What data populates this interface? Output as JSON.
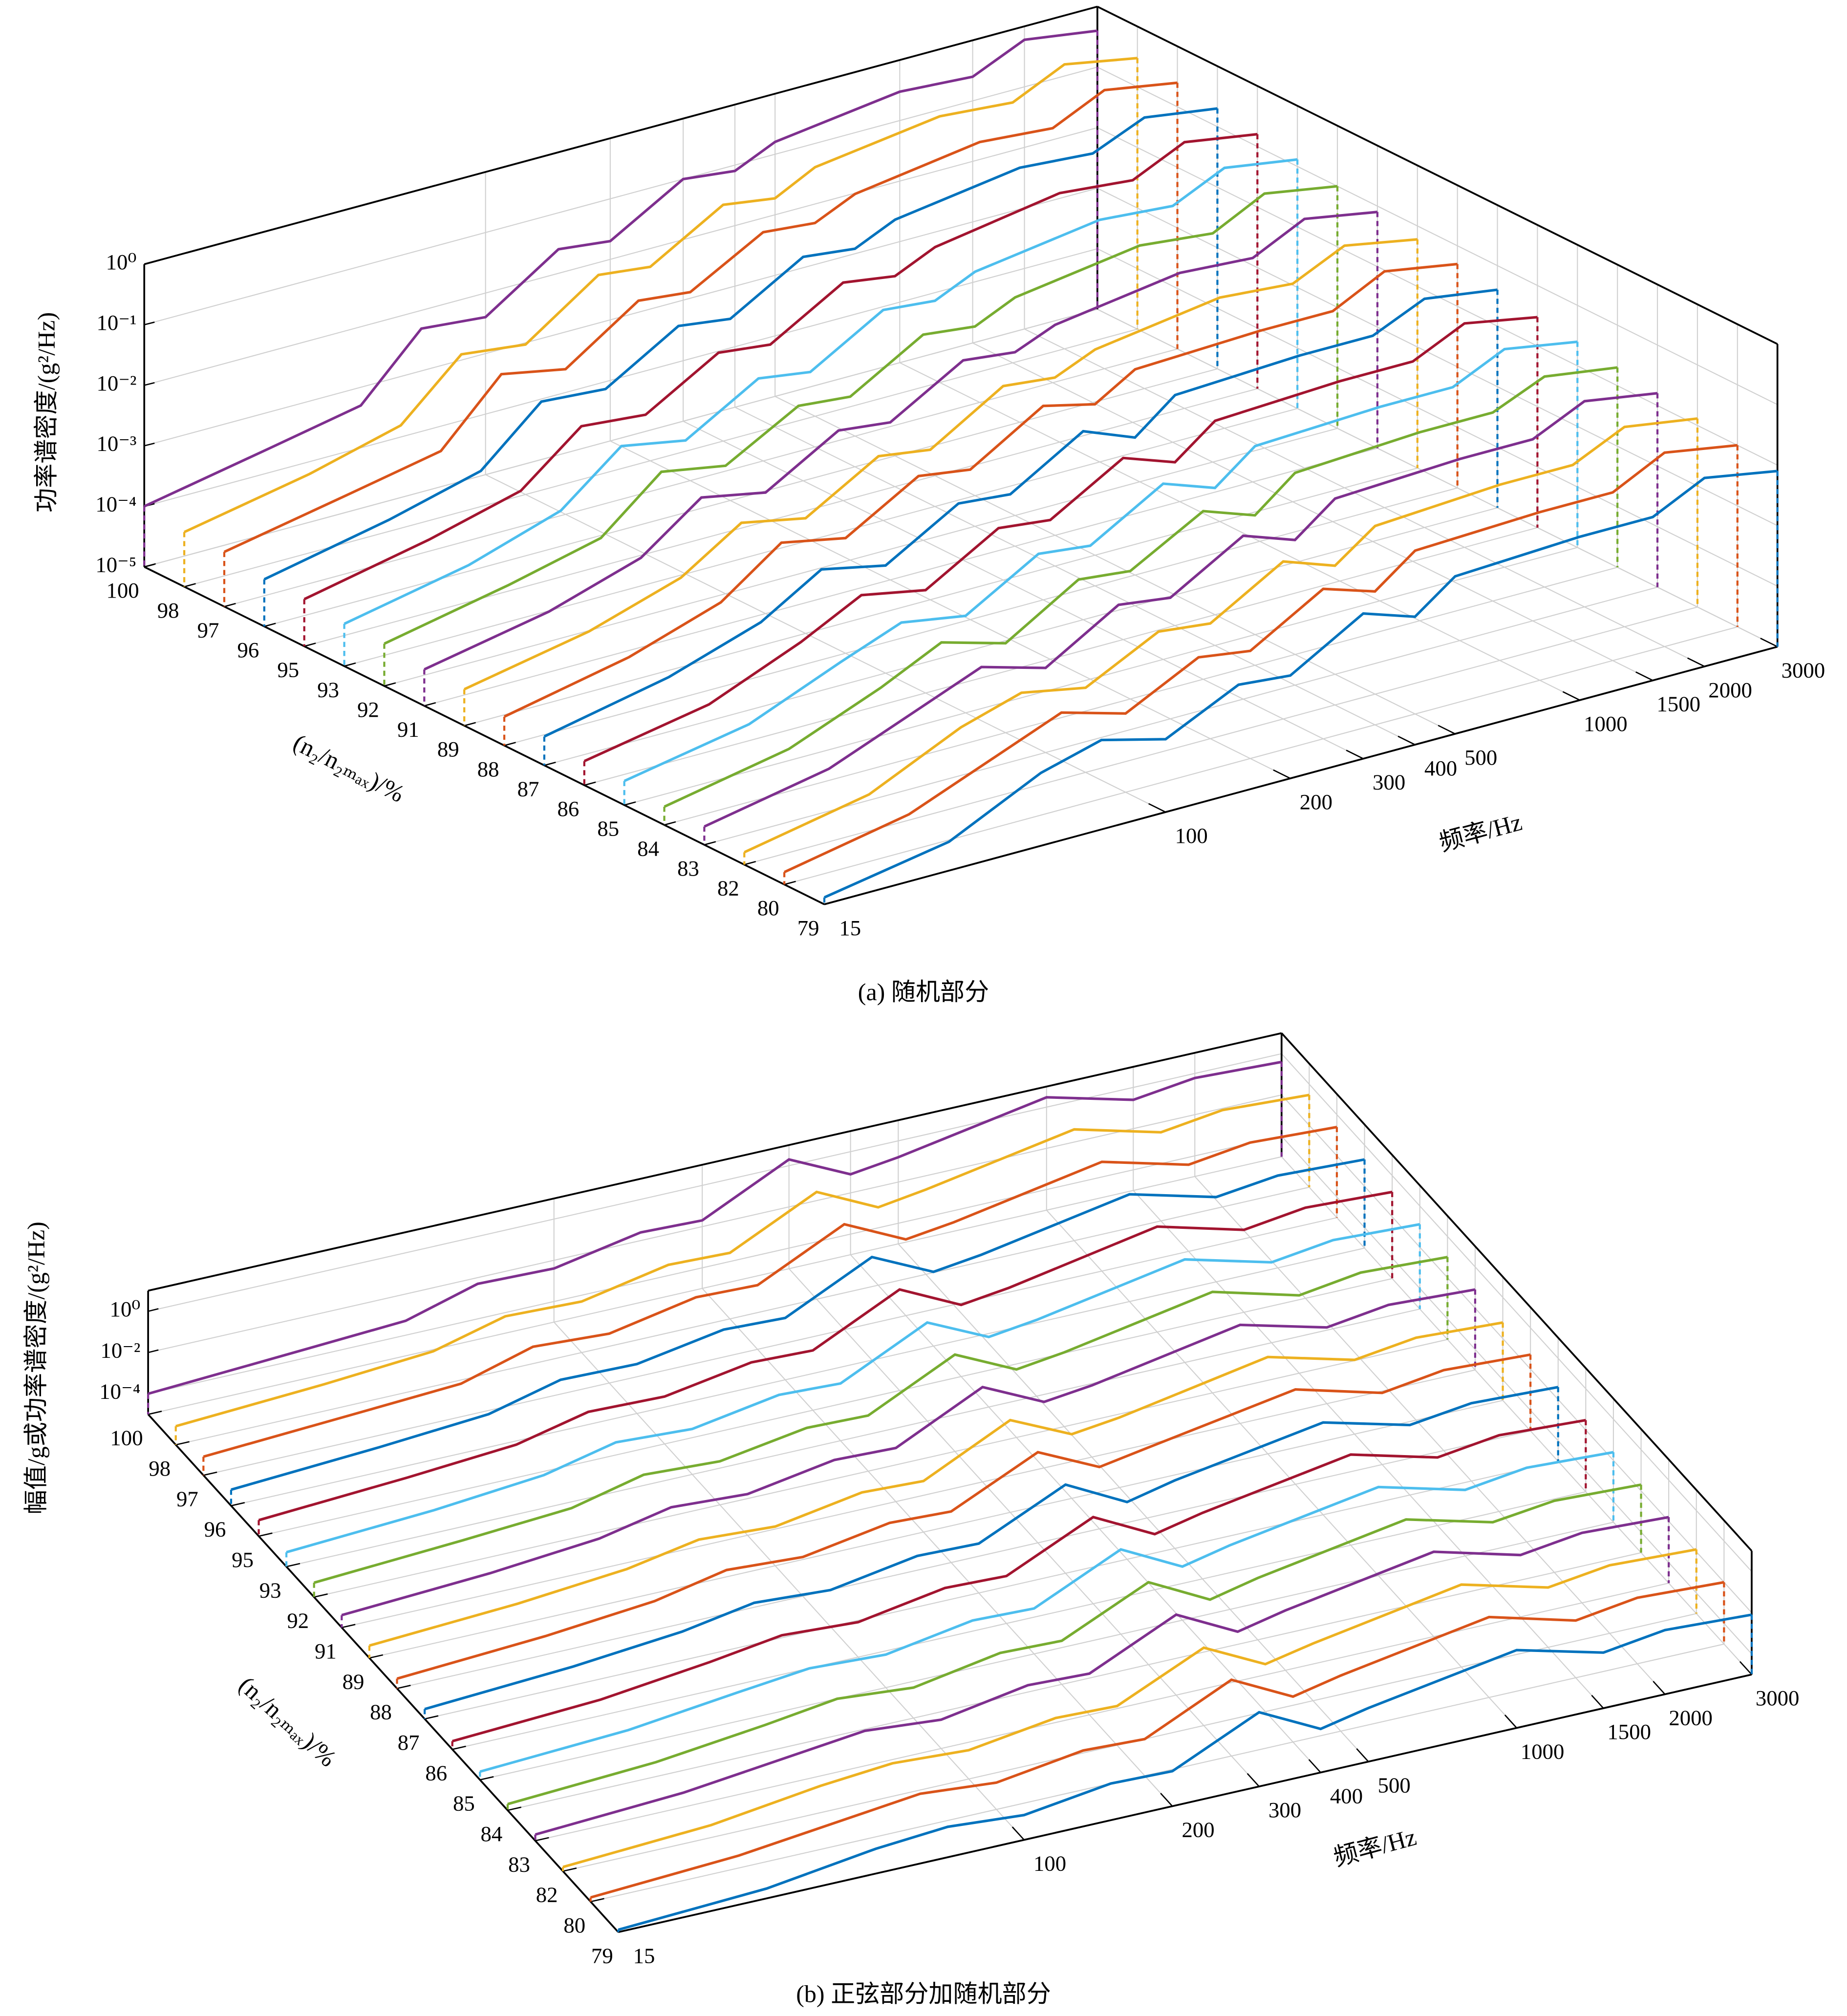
{
  "chart_data": [
    {
      "type": "waterfall",
      "caption": "(a) 随机部分",
      "zlabel": "功率谱密度/(g²/Hz)",
      "ylabel": "(n₂/n₂ₘₐₓ)/%",
      "xlabel": "频率/Hz",
      "categories": [
        100,
        98,
        97,
        96,
        95,
        93,
        92,
        91,
        89,
        88,
        87,
        86,
        85,
        84,
        83,
        82,
        80,
        79
      ],
      "x": [
        15,
        30,
        50,
        70,
        100,
        150,
        200,
        300,
        400,
        500,
        1000,
        1500,
        2000,
        3000
      ],
      "xlim": [
        15,
        3000
      ],
      "xticks": [
        15,
        100,
        200,
        300,
        400,
        500,
        1000,
        1500,
        2000,
        3000
      ],
      "xscale": "log",
      "zlim": [
        1e-05,
        1
      ],
      "zscale": "log",
      "zticks": [
        {
          "value": 1e-05,
          "label": "10⁻⁵"
        },
        {
          "value": 0.0001,
          "label": "10⁻⁴"
        },
        {
          "value": 0.001,
          "label": "10⁻³"
        },
        {
          "value": 0.01,
          "label": "10⁻²"
        },
        {
          "value": 0.1,
          "label": "10⁻¹"
        },
        {
          "value": 1,
          "label": "10⁰"
        }
      ],
      "grid": true,
      "series": [
        {
          "color": "#7E2F8E",
          "values": [
            0.0001,
            0.00025,
            0.0005,
            0.005,
            0.004,
            0.025,
            0.02,
            0.1,
            0.08,
            0.16,
            0.3,
            0.25,
            0.6,
            0.4
          ]
        },
        {
          "color": "#EDB120",
          "values": [
            8e-05,
            0.0002,
            0.0005,
            0.004,
            0.003,
            0.02,
            0.016,
            0.08,
            0.06,
            0.13,
            0.25,
            0.2,
            0.5,
            0.3
          ]
        },
        {
          "color": "#D95319",
          "values": [
            8e-05,
            0.0002,
            0.0004,
            0.004,
            0.0025,
            0.016,
            0.013,
            0.06,
            0.05,
            0.1,
            0.2,
            0.16,
            0.4,
            0.25
          ]
        },
        {
          "color": "#0072BD",
          "values": [
            6e-05,
            0.00016,
            0.0004,
            0.003,
            0.0025,
            0.013,
            0.01,
            0.05,
            0.04,
            0.08,
            0.16,
            0.13,
            0.3,
            0.2
          ]
        },
        {
          "color": "#A2142F",
          "values": [
            6e-05,
            0.00016,
            0.0004,
            0.0025,
            0.002,
            0.01,
            0.008,
            0.04,
            0.03,
            0.06,
            0.13,
            0.1,
            0.25,
            0.16
          ]
        },
        {
          "color": "#4DBEEE",
          "values": [
            5e-05,
            0.00013,
            0.0004,
            0.0025,
            0.0016,
            0.008,
            0.006,
            0.03,
            0.025,
            0.05,
            0.1,
            0.08,
            0.2,
            0.13
          ]
        },
        {
          "color": "#77AC30",
          "values": [
            5e-05,
            0.00013,
            0.0003,
            0.002,
            0.0013,
            0.006,
            0.005,
            0.025,
            0.02,
            0.04,
            0.08,
            0.06,
            0.16,
            0.1
          ]
        },
        {
          "color": "#7E2F8E",
          "values": [
            4e-05,
            0.0001,
            0.0003,
            0.0016,
            0.001,
            0.005,
            0.004,
            0.02,
            0.016,
            0.03,
            0.06,
            0.05,
            0.13,
            0.08
          ]
        },
        {
          "color": "#EDB120",
          "values": [
            4e-05,
            0.0001,
            0.0003,
            0.0013,
            0.0008,
            0.004,
            0.003,
            0.016,
            0.013,
            0.025,
            0.05,
            0.04,
            0.1,
            0.06
          ]
        },
        {
          "color": "#D95319",
          "values": [
            3e-05,
            8e-05,
            0.00025,
            0.0013,
            0.0008,
            0.004,
            0.003,
            0.016,
            0.01,
            0.025,
            0.03,
            0.03,
            0.08,
            0.05
          ]
        },
        {
          "color": "#0072BD",
          "values": [
            3e-05,
            8e-05,
            0.00025,
            0.001,
            0.0006,
            0.003,
            0.0025,
            0.013,
            0.006,
            0.02,
            0.025,
            0.025,
            0.06,
            0.04
          ]
        },
        {
          "color": "#A2142F",
          "values": [
            2.5e-05,
            6e-05,
            0.00025,
            0.0008,
            0.0005,
            0.0025,
            0.002,
            0.01,
            0.005,
            0.016,
            0.02,
            0.02,
            0.05,
            0.03
          ]
        },
        {
          "color": "#4DBEEE",
          "values": [
            2.5e-05,
            6e-05,
            0.00025,
            0.0006,
            0.0004,
            0.002,
            0.0016,
            0.008,
            0.004,
            0.013,
            0.016,
            0.016,
            0.04,
            0.025
          ]
        },
        {
          "color": "#77AC30",
          "values": [
            2e-05,
            5e-05,
            0.0002,
            0.0006,
            0.0003,
            0.0016,
            0.0013,
            0.006,
            0.003,
            0.01,
            0.013,
            0.013,
            0.03,
            0.02
          ]
        },
        {
          "color": "#7E2F8E",
          "values": [
            2e-05,
            5e-05,
            0.0002,
            0.0005,
            0.00025,
            0.0013,
            0.001,
            0.005,
            0.0025,
            0.008,
            0.01,
            0.01,
            0.025,
            0.016
          ]
        },
        {
          "color": "#EDB120",
          "values": [
            1.6e-05,
            4e-05,
            0.0002,
            0.0004,
            0.00025,
            0.001,
            0.0008,
            0.004,
            0.002,
            0.006,
            0.008,
            0.008,
            0.02,
            0.013
          ]
        },
        {
          "color": "#D95319",
          "values": [
            1.6e-05,
            4e-05,
            0.00016,
            0.0004,
            0.0002,
            0.0008,
            0.0006,
            0.003,
            0.0016,
            0.005,
            0.006,
            0.006,
            0.016,
            0.01
          ]
        },
        {
          "color": "#0072BD",
          "values": [
            1.3e-05,
            3e-05,
            0.00016,
            0.0003,
            0.00016,
            0.0006,
            0.0005,
            0.0025,
            0.0013,
            0.004,
            0.005,
            0.005,
            0.013,
            0.008
          ]
        }
      ]
    },
    {
      "type": "waterfall",
      "caption": "(b) 正弦部分加随机部分",
      "zlabel": "幅值/g或功率谱密度/(g²/Hz)",
      "ylabel": "(n₂/n₂ₘₐₓ)/%",
      "xlabel": "频率/Hz",
      "categories": [
        100,
        98,
        97,
        96,
        95,
        93,
        92,
        91,
        89,
        88,
        87,
        86,
        85,
        84,
        83,
        82,
        80,
        79
      ],
      "x": [
        15,
        30,
        50,
        70,
        100,
        150,
        200,
        300,
        400,
        500,
        1000,
        1500,
        2000,
        3000
      ],
      "xlim": [
        15,
        3000
      ],
      "xticks": [
        15,
        100,
        200,
        300,
        400,
        500,
        1000,
        1500,
        2000,
        3000
      ],
      "xscale": "log",
      "zlim": [
        1e-05,
        10
      ],
      "zscale": "log",
      "zticks": [
        {
          "value": 0.0001,
          "label": "10⁻⁴"
        },
        {
          "value": 0.01,
          "label": "10⁻²"
        },
        {
          "value": 1,
          "label": "10⁰"
        }
      ],
      "grid": true,
      "series": [
        {
          "color": "#7E2F8E",
          "values": [
            0.0001,
            0.00025,
            0.0005,
            0.005,
            0.004,
            0.025,
            0.02,
            2,
            0.08,
            0.16,
            3,
            0.25,
            0.6,
            0.4
          ]
        },
        {
          "color": "#EDB120",
          "values": [
            8e-05,
            0.0002,
            0.0005,
            0.004,
            0.003,
            0.02,
            0.016,
            1.6,
            0.06,
            0.13,
            2.5,
            0.2,
            0.5,
            0.3
          ]
        },
        {
          "color": "#D95319",
          "values": [
            8e-05,
            0.0002,
            0.0004,
            0.004,
            0.0025,
            0.016,
            0.013,
            1.3,
            0.05,
            0.1,
            2,
            0.16,
            0.4,
            0.25
          ]
        },
        {
          "color": "#0072BD",
          "values": [
            6e-05,
            0.00016,
            0.0004,
            0.003,
            0.0025,
            0.013,
            0.01,
            1,
            0.04,
            0.08,
            1.6,
            0.13,
            0.3,
            0.2
          ]
        },
        {
          "color": "#A2142F",
          "values": [
            6e-05,
            0.00016,
            0.0004,
            0.0025,
            0.002,
            0.01,
            0.008,
            0.8,
            0.03,
            0.06,
            1.3,
            0.1,
            0.25,
            0.16
          ]
        },
        {
          "color": "#4DBEEE",
          "values": [
            5e-05,
            0.00013,
            0.0004,
            0.0025,
            0.0016,
            0.008,
            0.006,
            0.6,
            0.025,
            0.05,
            1,
            0.08,
            0.2,
            0.13
          ]
        },
        {
          "color": "#77AC30",
          "values": [
            5e-05,
            0.00013,
            0.0003,
            0.002,
            0.0013,
            0.006,
            0.005,
            0.5,
            0.02,
            0.04,
            0.8,
            0.06,
            0.16,
            0.1
          ]
        },
        {
          "color": "#7E2F8E",
          "values": [
            4e-05,
            0.0001,
            0.0003,
            0.0016,
            0.001,
            0.005,
            0.004,
            0.4,
            0.016,
            0.03,
            0.6,
            0.05,
            0.13,
            0.08
          ]
        },
        {
          "color": "#EDB120",
          "values": [
            4e-05,
            0.0001,
            0.0003,
            0.0013,
            0.0008,
            0.004,
            0.003,
            0.3,
            0.013,
            0.025,
            0.5,
            0.04,
            0.1,
            0.06
          ]
        },
        {
          "color": "#D95319",
          "values": [
            3e-05,
            8e-05,
            0.00025,
            0.0013,
            0.0008,
            0.004,
            0.003,
            0.25,
            0.01,
            0.025,
            0.4,
            0.03,
            0.08,
            0.05
          ]
        },
        {
          "color": "#0072BD",
          "values": [
            3e-05,
            8e-05,
            0.00025,
            0.001,
            0.0006,
            0.003,
            0.0025,
            0.2,
            0.006,
            0.02,
            0.3,
            0.025,
            0.06,
            0.04
          ]
        },
        {
          "color": "#A2142F",
          "values": [
            2.5e-05,
            6e-05,
            0.00025,
            0.0008,
            0.0005,
            0.0025,
            0.002,
            0.16,
            0.005,
            0.016,
            0.25,
            0.02,
            0.05,
            0.03
          ]
        },
        {
          "color": "#4DBEEE",
          "values": [
            2.5e-05,
            6e-05,
            0.00025,
            0.0006,
            0.0004,
            0.002,
            0.0016,
            0.13,
            0.004,
            0.013,
            0.2,
            0.016,
            0.04,
            0.025
          ]
        },
        {
          "color": "#77AC30",
          "values": [
            2e-05,
            5e-05,
            0.0002,
            0.0006,
            0.0003,
            0.0016,
            0.0013,
            0.1,
            0.003,
            0.01,
            0.16,
            0.013,
            0.03,
            0.02
          ]
        },
        {
          "color": "#7E2F8E",
          "values": [
            2e-05,
            5e-05,
            0.0002,
            0.0005,
            0.00025,
            0.0013,
            0.001,
            0.08,
            0.0025,
            0.008,
            0.13,
            0.01,
            0.025,
            0.016
          ]
        },
        {
          "color": "#EDB120",
          "values": [
            1.6e-05,
            4e-05,
            0.0002,
            0.0004,
            0.00025,
            0.001,
            0.0008,
            0.06,
            0.002,
            0.006,
            0.1,
            0.008,
            0.02,
            0.013
          ]
        },
        {
          "color": "#D95319",
          "values": [
            1.6e-05,
            4e-05,
            0.00016,
            0.0004,
            0.0002,
            0.0008,
            0.0006,
            0.05,
            0.0016,
            0.005,
            0.08,
            0.006,
            0.016,
            0.01
          ]
        },
        {
          "color": "#0072BD",
          "values": [
            1.3e-05,
            3e-05,
            0.00016,
            0.0003,
            0.00016,
            0.0006,
            0.0005,
            0.04,
            0.0013,
            0.004,
            0.06,
            0.005,
            0.013,
            0.008
          ]
        }
      ]
    }
  ]
}
